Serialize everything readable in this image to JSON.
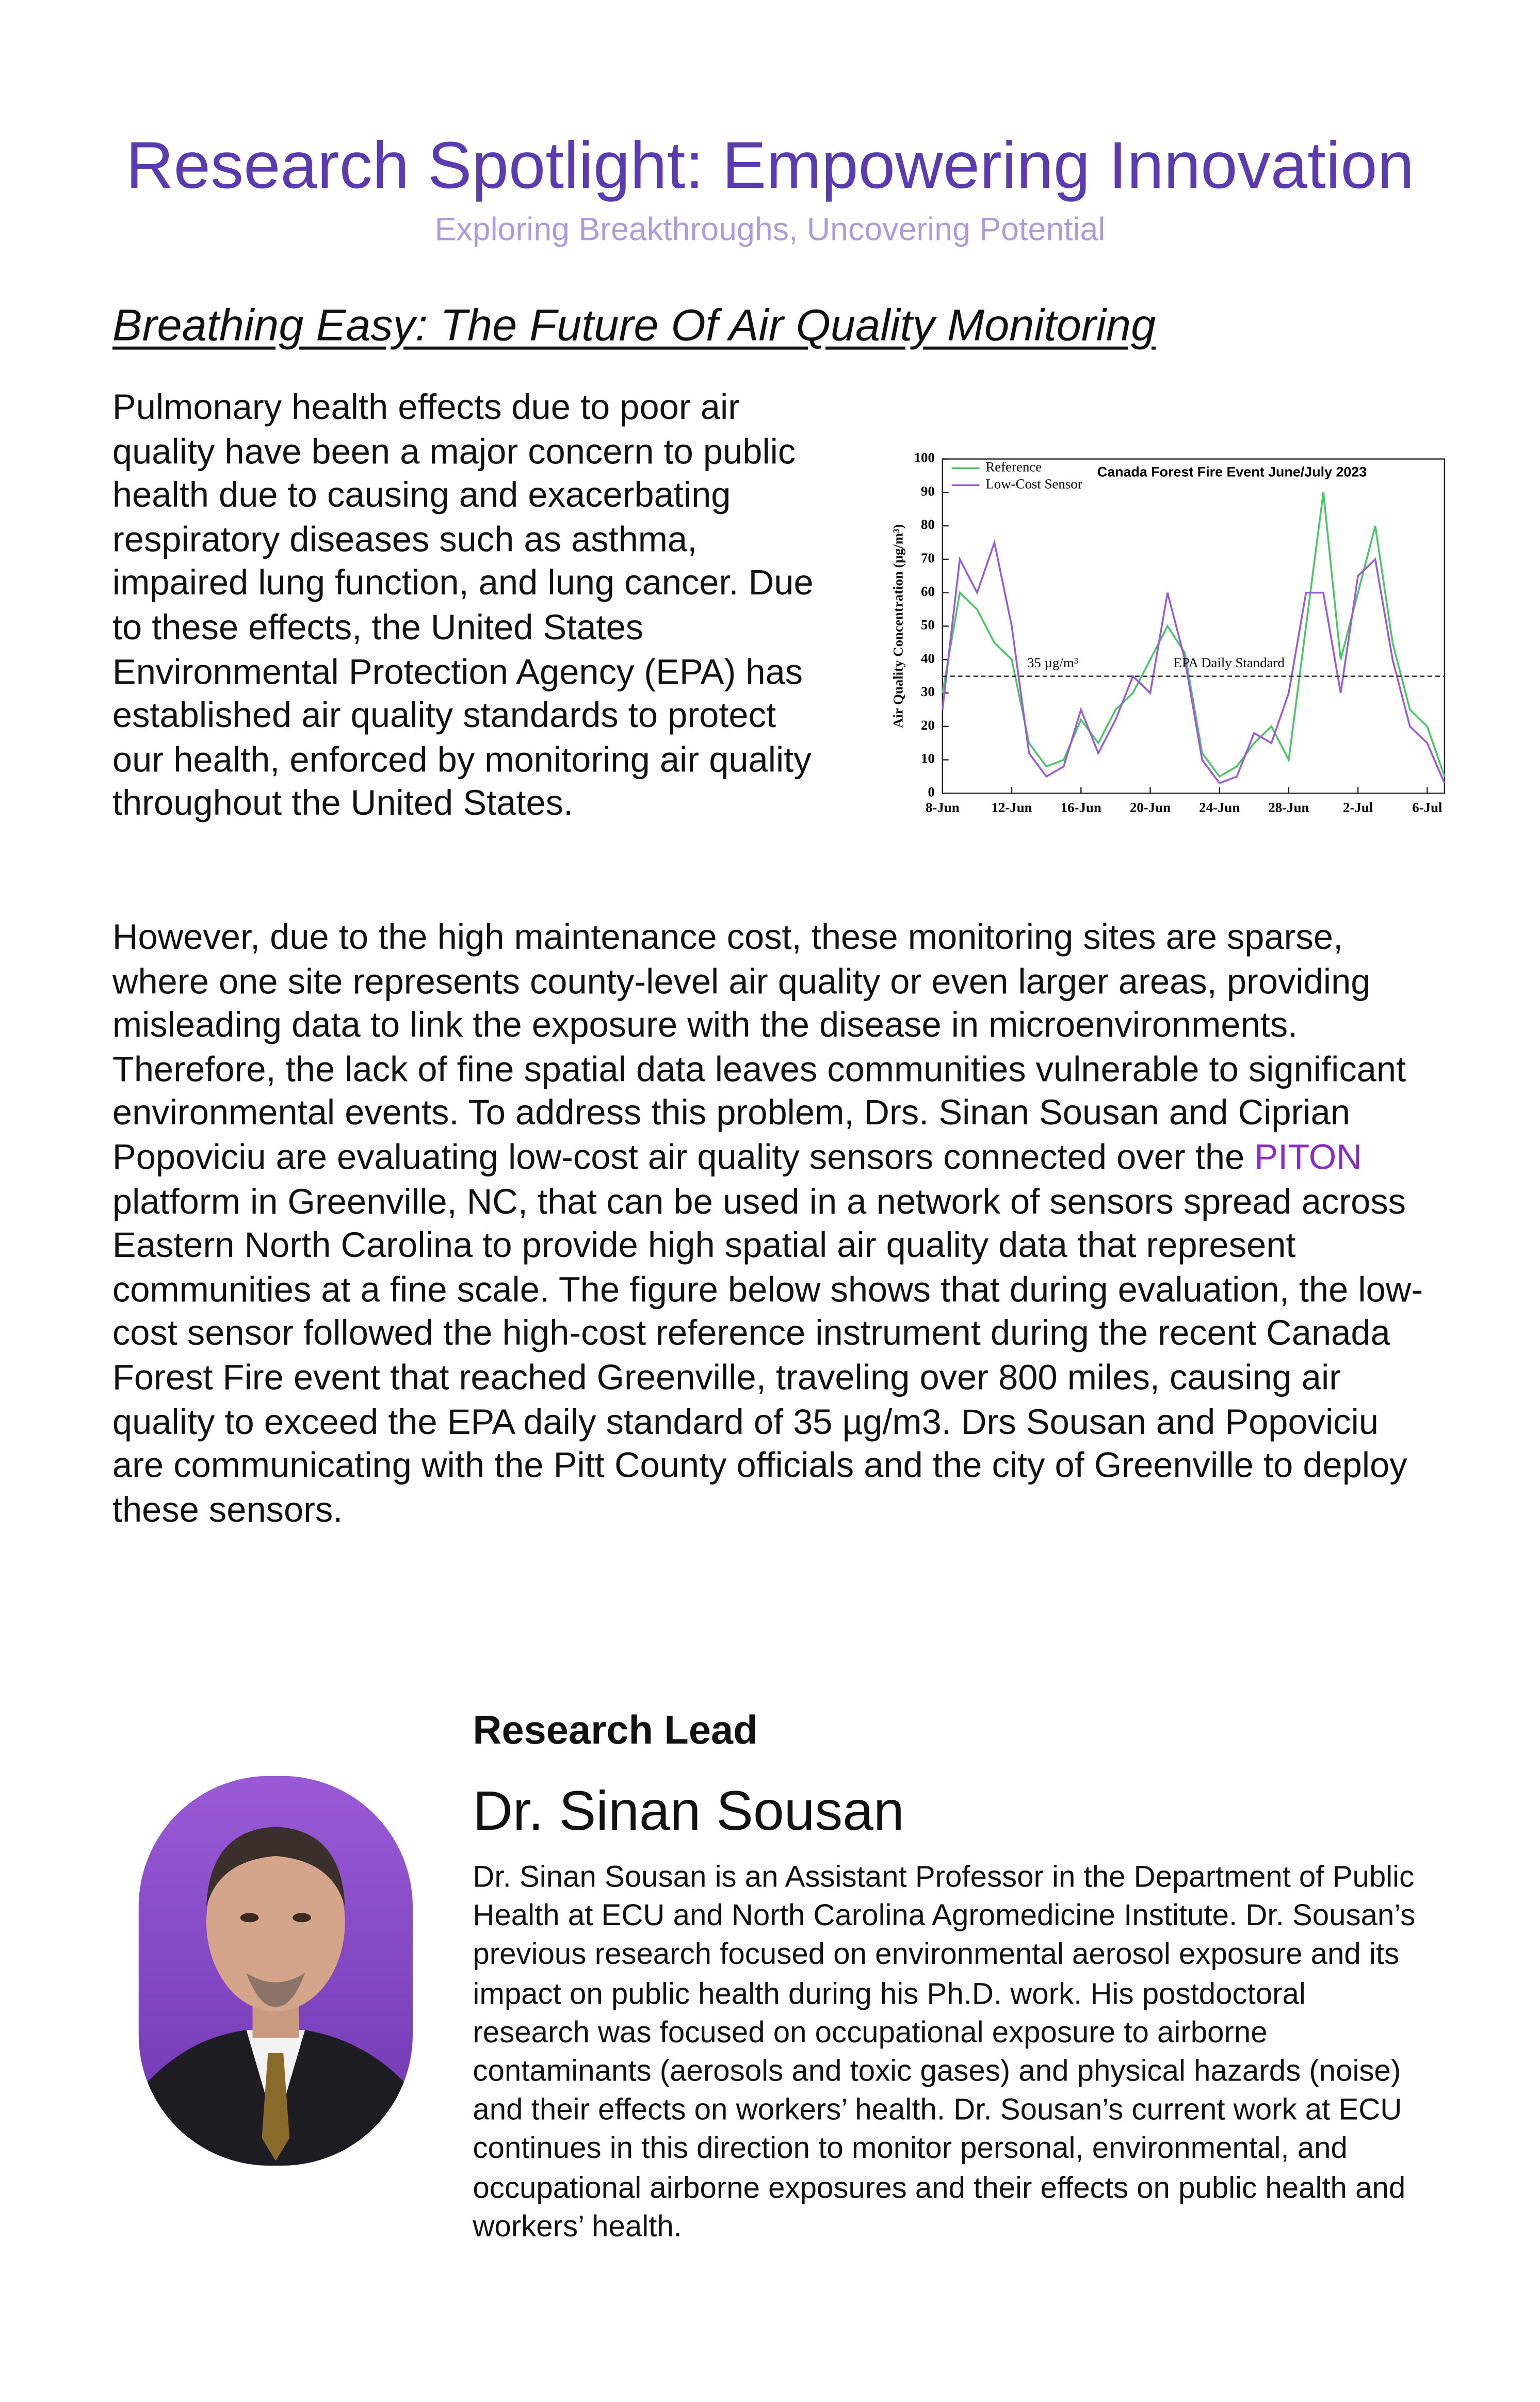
{
  "header": {
    "title": "Research Spotlight: Empowering Innovation",
    "subtitle": "Exploring Breakthroughs, Uncovering Potential"
  },
  "article": {
    "title": "Breathing Easy: The Future Of Air Quality Monitoring",
    "paragraph1": "Pulmonary health effects due to poor air quality have been a major concern to public health due to causing and exacerbating respiratory diseases such as asthma, impaired lung function, and lung cancer. Due to these effects, the United States Environmental Protection Agency (EPA) has established air quality standards to protect our health, enforced by monitoring air quality throughout the United States.",
    "paragraph2": {
      "before": "However, due to the high maintenance cost, these monitoring sites are sparse, where one site represents county-level air quality or even larger areas, providing misleading data to link the exposure with the disease in microenvironments. Therefore, the lack of fine spatial data leaves communities vulnerable to significant environmental events. To address this problem, Drs. Sinan Sousan and Ciprian Popoviciu are evaluating low-cost air quality sensors connected over the ",
      "link": "PITON",
      "after": " platform in Greenville, NC, that can be used in a network of sensors spread across Eastern North Carolina to provide high spatial air quality data that represent communities at a fine scale. The figure below shows that during evaluation, the low-cost sensor followed the high-cost reference instrument during the recent Canada Forest Fire event that reached Greenville, traveling over 800 miles, causing air quality to exceed the EPA daily standard of 35 µg/m3. Drs Sousan and Popoviciu are communicating with the Pitt County officials and the city of Greenville to deploy these sensors."
    }
  },
  "chart_data": {
    "type": "line",
    "title": "Canada Forest Fire Event June/July 2023",
    "y_label": "Air Quality Concentration (µg/m³)",
    "categories": [
      "8-Jun",
      null,
      null,
      null,
      "12-Jun",
      null,
      null,
      null,
      "16-Jun",
      null,
      null,
      null,
      "20-Jun",
      null,
      null,
      null,
      "24-Jun",
      null,
      null,
      null,
      "28-Jun",
      null,
      null,
      null,
      "2-Jul",
      null,
      null,
      null,
      "6-Jul",
      null
    ],
    "series": [
      {
        "name": "Reference",
        "color": "#4cc46a",
        "values": [
          30,
          60,
          55,
          45,
          40,
          15,
          8,
          10,
          22,
          15,
          25,
          30,
          40,
          50,
          42,
          12,
          5,
          8,
          15,
          20,
          10,
          50,
          90,
          40,
          60,
          80,
          45,
          25,
          20,
          5
        ]
      },
      {
        "name": "Low-Cost Sensor",
        "color": "#9b5cd0",
        "values": [
          25,
          70,
          60,
          75,
          50,
          12,
          5,
          8,
          25,
          12,
          22,
          35,
          30,
          60,
          40,
          10,
          3,
          5,
          18,
          15,
          30,
          60,
          60,
          30,
          65,
          70,
          40,
          20,
          15,
          3
        ]
      }
    ],
    "ylim": [
      0,
      100
    ],
    "yticks": [
      0,
      10,
      20,
      30,
      40,
      50,
      60,
      70,
      80,
      90,
      100
    ],
    "threshold": 35,
    "threshold_label": "35 µg/m³",
    "threshold_note": "EPA Daily Standard",
    "legend": "top-left"
  },
  "lead": {
    "heading": "Research Lead",
    "name": "Dr. Sinan Sousan",
    "bio": "Dr. Sinan Sousan is an Assistant Professor in the Department of Public Health at ECU and North Carolina Agromedicine Institute. Dr. Sousan’s previous research focused on environmental aerosol exposure and its impact on public health during his Ph.D. work. His postdoctoral research was focused on occupational exposure to airborne contaminants (aerosols and toxic gases) and physical hazards (noise) and their effects on workers’ health. Dr. Sousan’s current work at ECU continues in this direction to monitor personal, environmental, and occupational airborne exposures and their effects on public health and workers’ health."
  }
}
